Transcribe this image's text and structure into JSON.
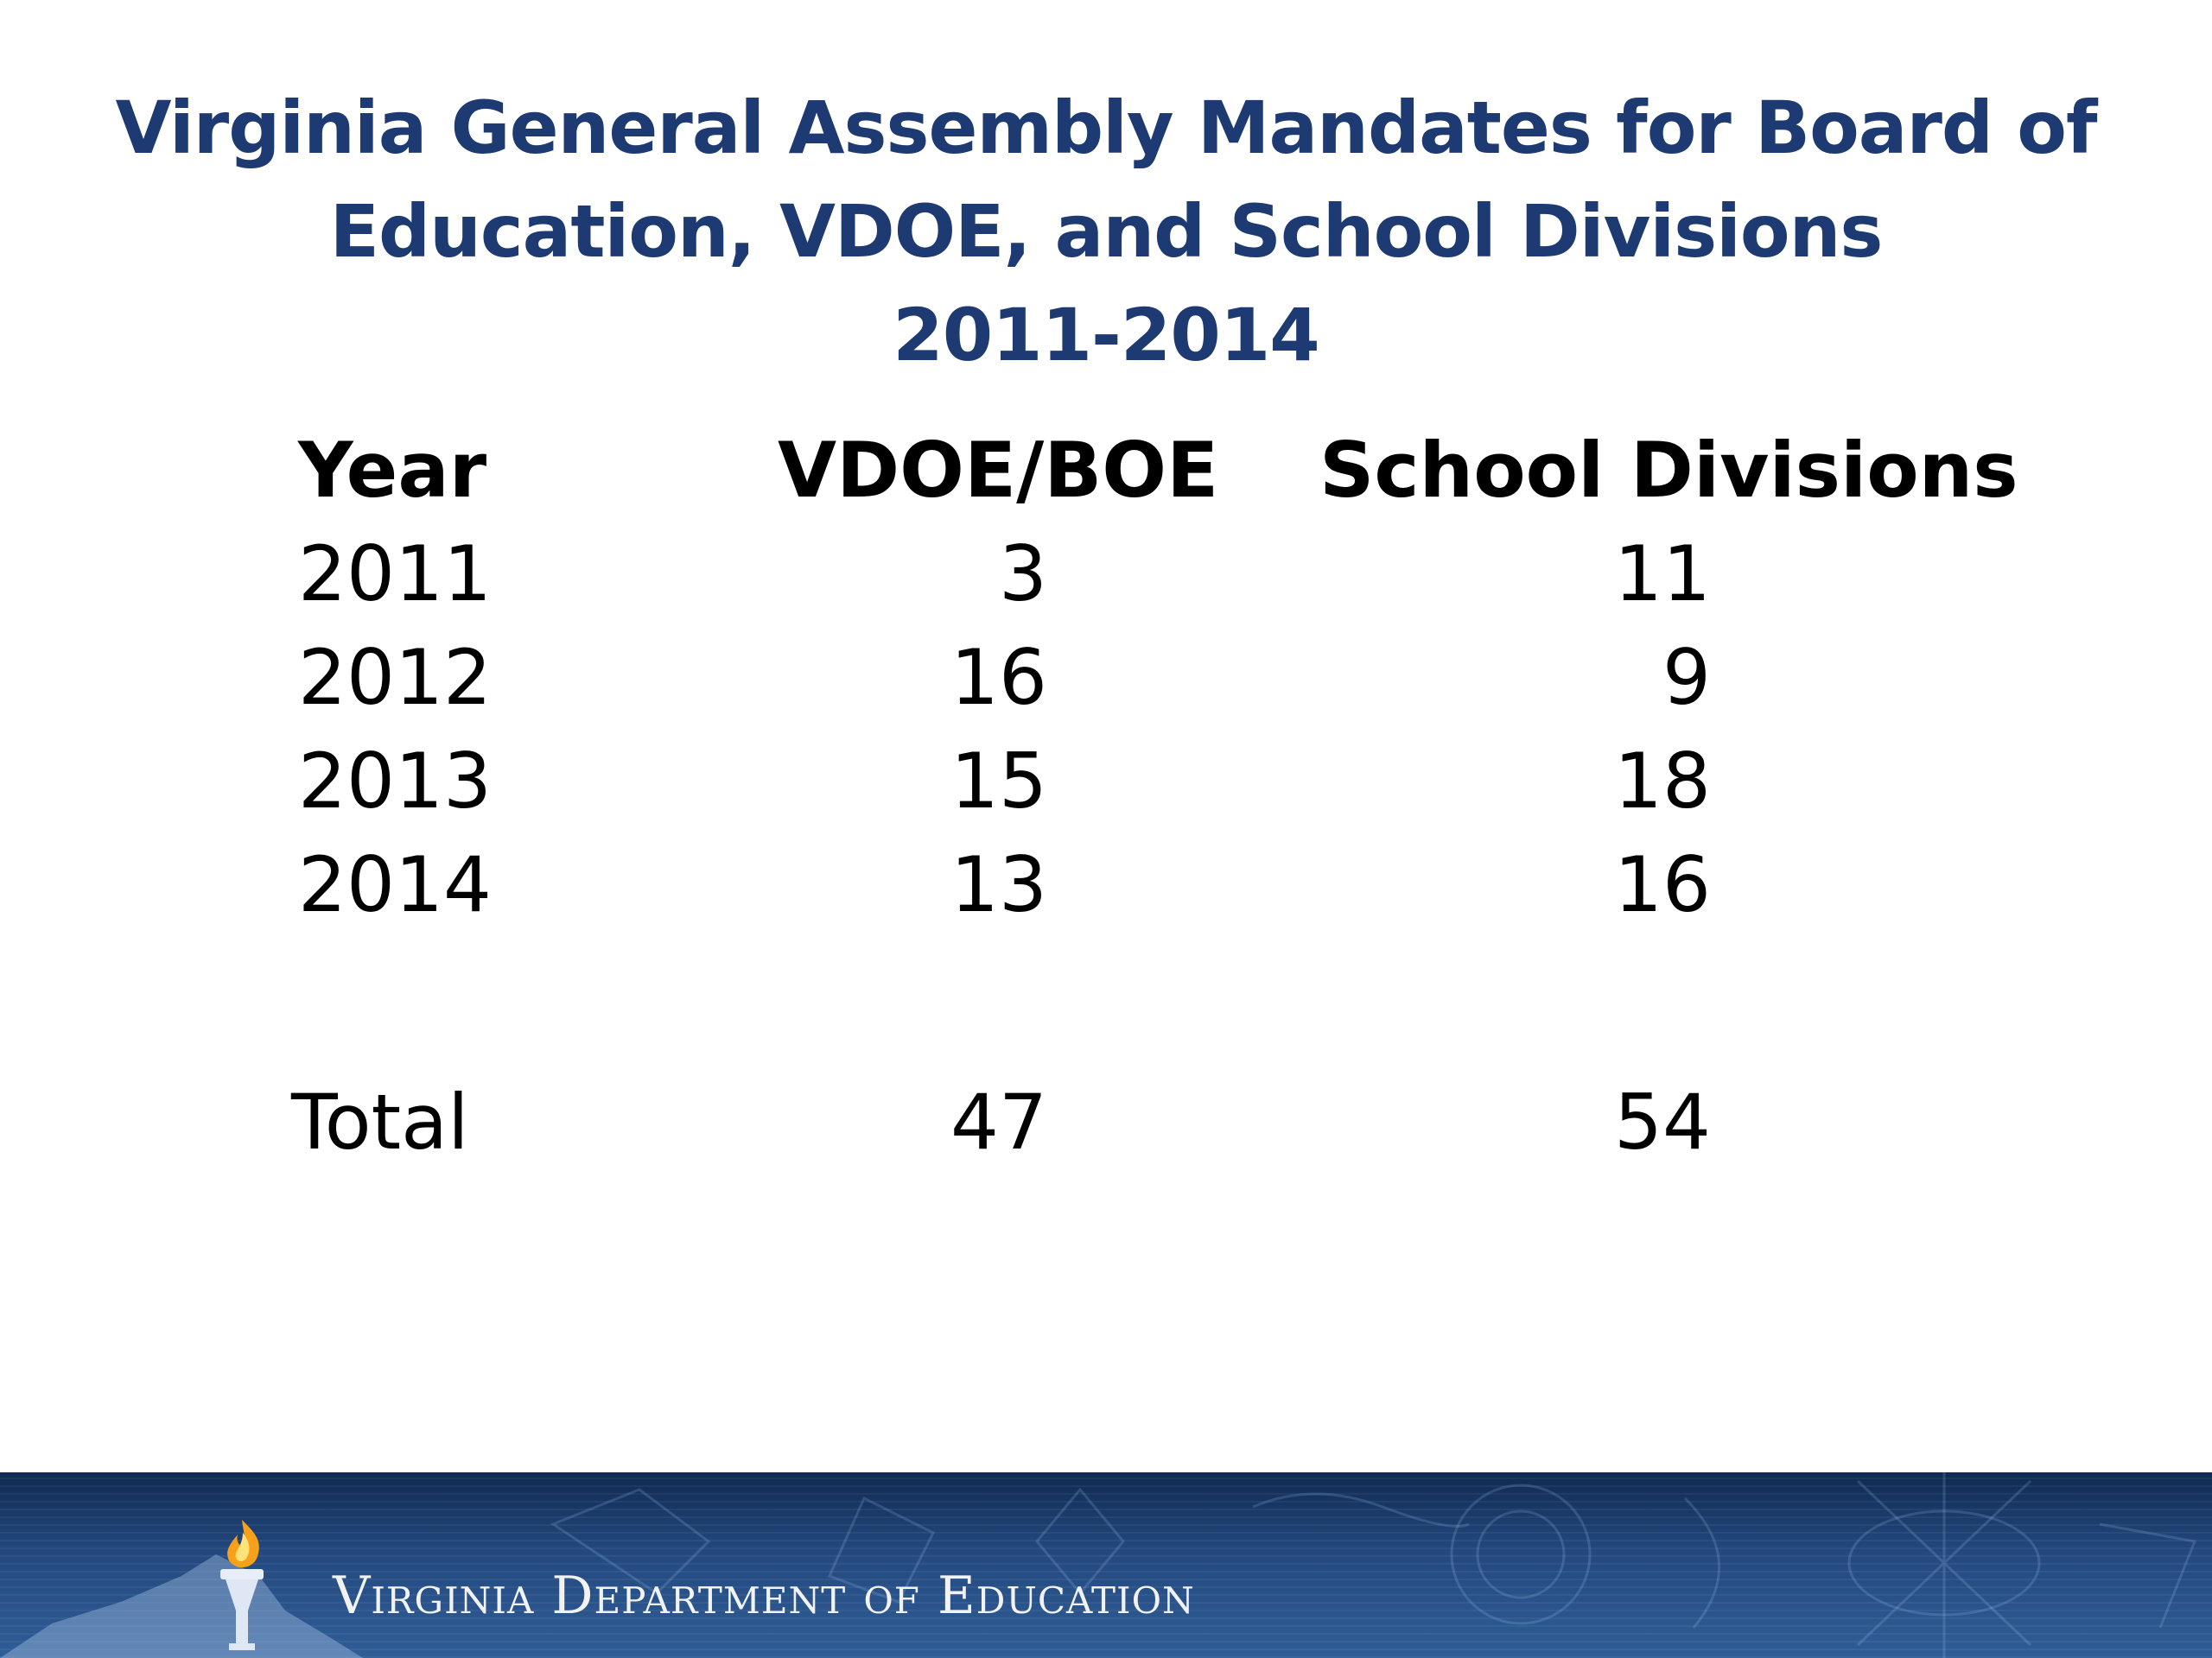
{
  "title": {
    "line1": "Virginia General Assembly Mandates for Board of",
    "line2": "Education, VDOE, and School Divisions",
    "line3": "2011-2014"
  },
  "table": {
    "headers": [
      "Year",
      "VDOE/BOE",
      "School Divisions"
    ],
    "rows": [
      [
        "2011",
        "3",
        "11"
      ],
      [
        "2012",
        "16",
        "9"
      ],
      [
        "2013",
        "15",
        "18"
      ],
      [
        "2014",
        "13",
        "16"
      ]
    ],
    "total": [
      "Total",
      "47",
      "54"
    ]
  },
  "footer": {
    "org_name": "Virginia Department of Education",
    "colors": {
      "banner_dark": "#0f2a52",
      "banner_light": "#2f5d96",
      "title": "#1d3a72"
    },
    "logo_icon": "torch-icon"
  }
}
